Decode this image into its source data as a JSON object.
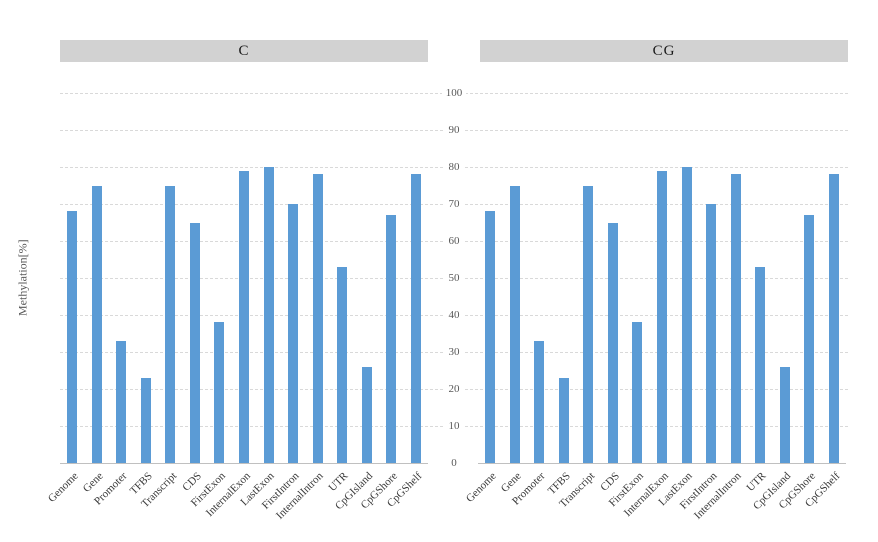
{
  "figure": {
    "y_axis_title": "Methylation[%]",
    "colors": {
      "bar": "#5b9bd5",
      "header_bg": "#d2d2d2",
      "gridline": "#d9d9d9",
      "baseline": "#c0c0c0",
      "tick_text": "#595959",
      "category_text": "#3a3a3a"
    }
  },
  "chart_data": [
    {
      "type": "bar",
      "title": "C",
      "categories": [
        "Genome",
        "Gene",
        "Promoter",
        "TFBS",
        "Transcript",
        "CDS",
        "FirstExon",
        "InternalExon",
        "LastExon",
        "FirstIntron",
        "InternalIntron",
        "UTR",
        "CpGIsland",
        "CpGShore",
        "CpGShelf"
      ],
      "values": [
        68,
        75,
        33,
        23,
        75,
        65,
        38,
        79,
        80,
        70,
        78,
        53,
        26,
        67,
        78
      ],
      "xlabel": "",
      "ylabel": "Methylation[%]",
      "ylim": [
        0,
        100
      ],
      "yticks": [
        0,
        10,
        20,
        30,
        40,
        50,
        60,
        70,
        80,
        90,
        100
      ],
      "grid": "horizontal-dashed",
      "legend": "none"
    },
    {
      "type": "bar",
      "title": "CG",
      "categories": [
        "Genome",
        "Gene",
        "Promoter",
        "TFBS",
        "Transcript",
        "CDS",
        "FirstExon",
        "InternalExon",
        "LastExon",
        "FirstIntron",
        "InternalIntron",
        "UTR",
        "CpGIsland",
        "CpGShore",
        "CpGShelf"
      ],
      "values": [
        68,
        75,
        33,
        23,
        75,
        65,
        38,
        79,
        80,
        70,
        78,
        53,
        26,
        67,
        78
      ],
      "xlabel": "",
      "ylabel": "Methylation[%]",
      "ylim": [
        0,
        100
      ],
      "yticks": [
        0,
        10,
        20,
        30,
        40,
        50,
        60,
        70,
        80,
        90,
        100
      ],
      "grid": "horizontal-dashed",
      "legend": "none"
    }
  ]
}
